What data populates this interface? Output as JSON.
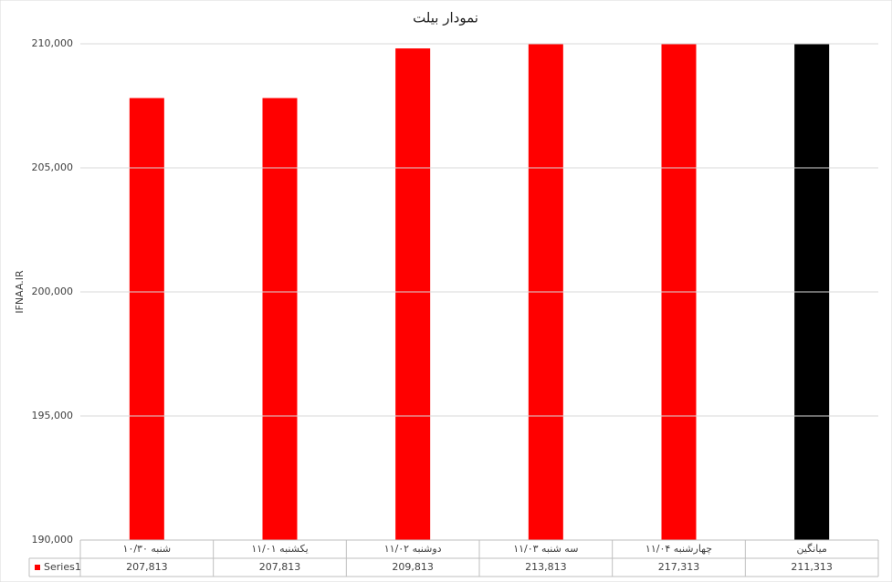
{
  "chart_data": {
    "type": "bar",
    "title": "نمودار بیلت",
    "y_label": "IFNAA.IR",
    "categories": [
      "شنبه ۱۰/۳۰",
      "یکشنبه ۱۱/۰۱",
      "دوشنبه ۱۱/۰۲",
      "سه شنبه ۱۱/۰۳",
      "چهارشنبه ۱۱/۰۴",
      "میانگین"
    ],
    "series": [
      {
        "name": "Series1",
        "color": "#ff0000",
        "point_colors": [
          "#ff0000",
          "#ff0000",
          "#ff0000",
          "#ff0000",
          "#ff0000",
          "#000000"
        ],
        "values": [
          207813,
          207813,
          209813,
          213813,
          217313,
          211313
        ],
        "value_labels": [
          "207,813",
          "207,813",
          "209,813",
          "213,813",
          "217,313",
          "211,313"
        ]
      }
    ],
    "ylim": [
      190000,
      210000
    ],
    "yticks": [
      {
        "value": 190000,
        "label": "190,000"
      },
      {
        "value": 195000,
        "label": "195,000"
      },
      {
        "value": 200000,
        "label": "200,000"
      },
      {
        "value": 205000,
        "label": "205,000"
      },
      {
        "value": 210000,
        "label": "210,000"
      }
    ],
    "grid": true
  }
}
